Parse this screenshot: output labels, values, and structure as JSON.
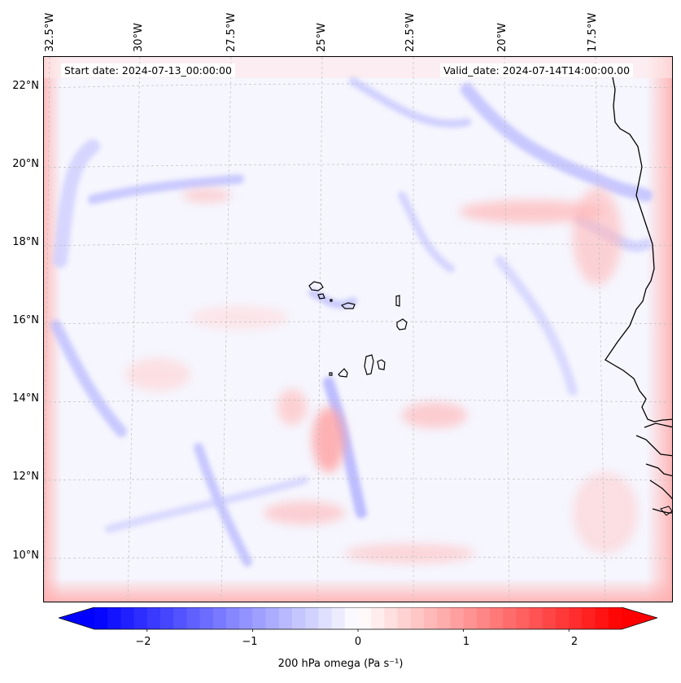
{
  "map": {
    "start_date_label": "Start date: 2024-07-13_00:00:00",
    "valid_date_label": "Valid_date: 2024-07-14T14:00:00.00",
    "lon_labels": [
      "32.5°W",
      "30°W",
      "27.5°W",
      "25°W",
      "22.5°W",
      "20°W",
      "17.5°W"
    ],
    "lat_labels": [
      "22°N",
      "20°N",
      "18°N",
      "16°N",
      "14°N",
      "12°N",
      "10°N"
    ],
    "field": "200 hPa omega",
    "units": "Pa s⁻¹"
  },
  "colorbar": {
    "min": -2.5,
    "max": 2.5,
    "ticks": [
      "−2",
      "−1",
      "0",
      "1",
      "2"
    ],
    "tick_values": [
      -2,
      -1,
      0,
      1,
      2
    ],
    "label": "200 hPa omega (Pa s⁻¹)",
    "colors": {
      "negative": "#0000ff",
      "zero": "#ffffff",
      "positive": "#ff0000"
    }
  },
  "colors": {
    "coastline": "#000000",
    "gridline": "#b0b0b0"
  }
}
